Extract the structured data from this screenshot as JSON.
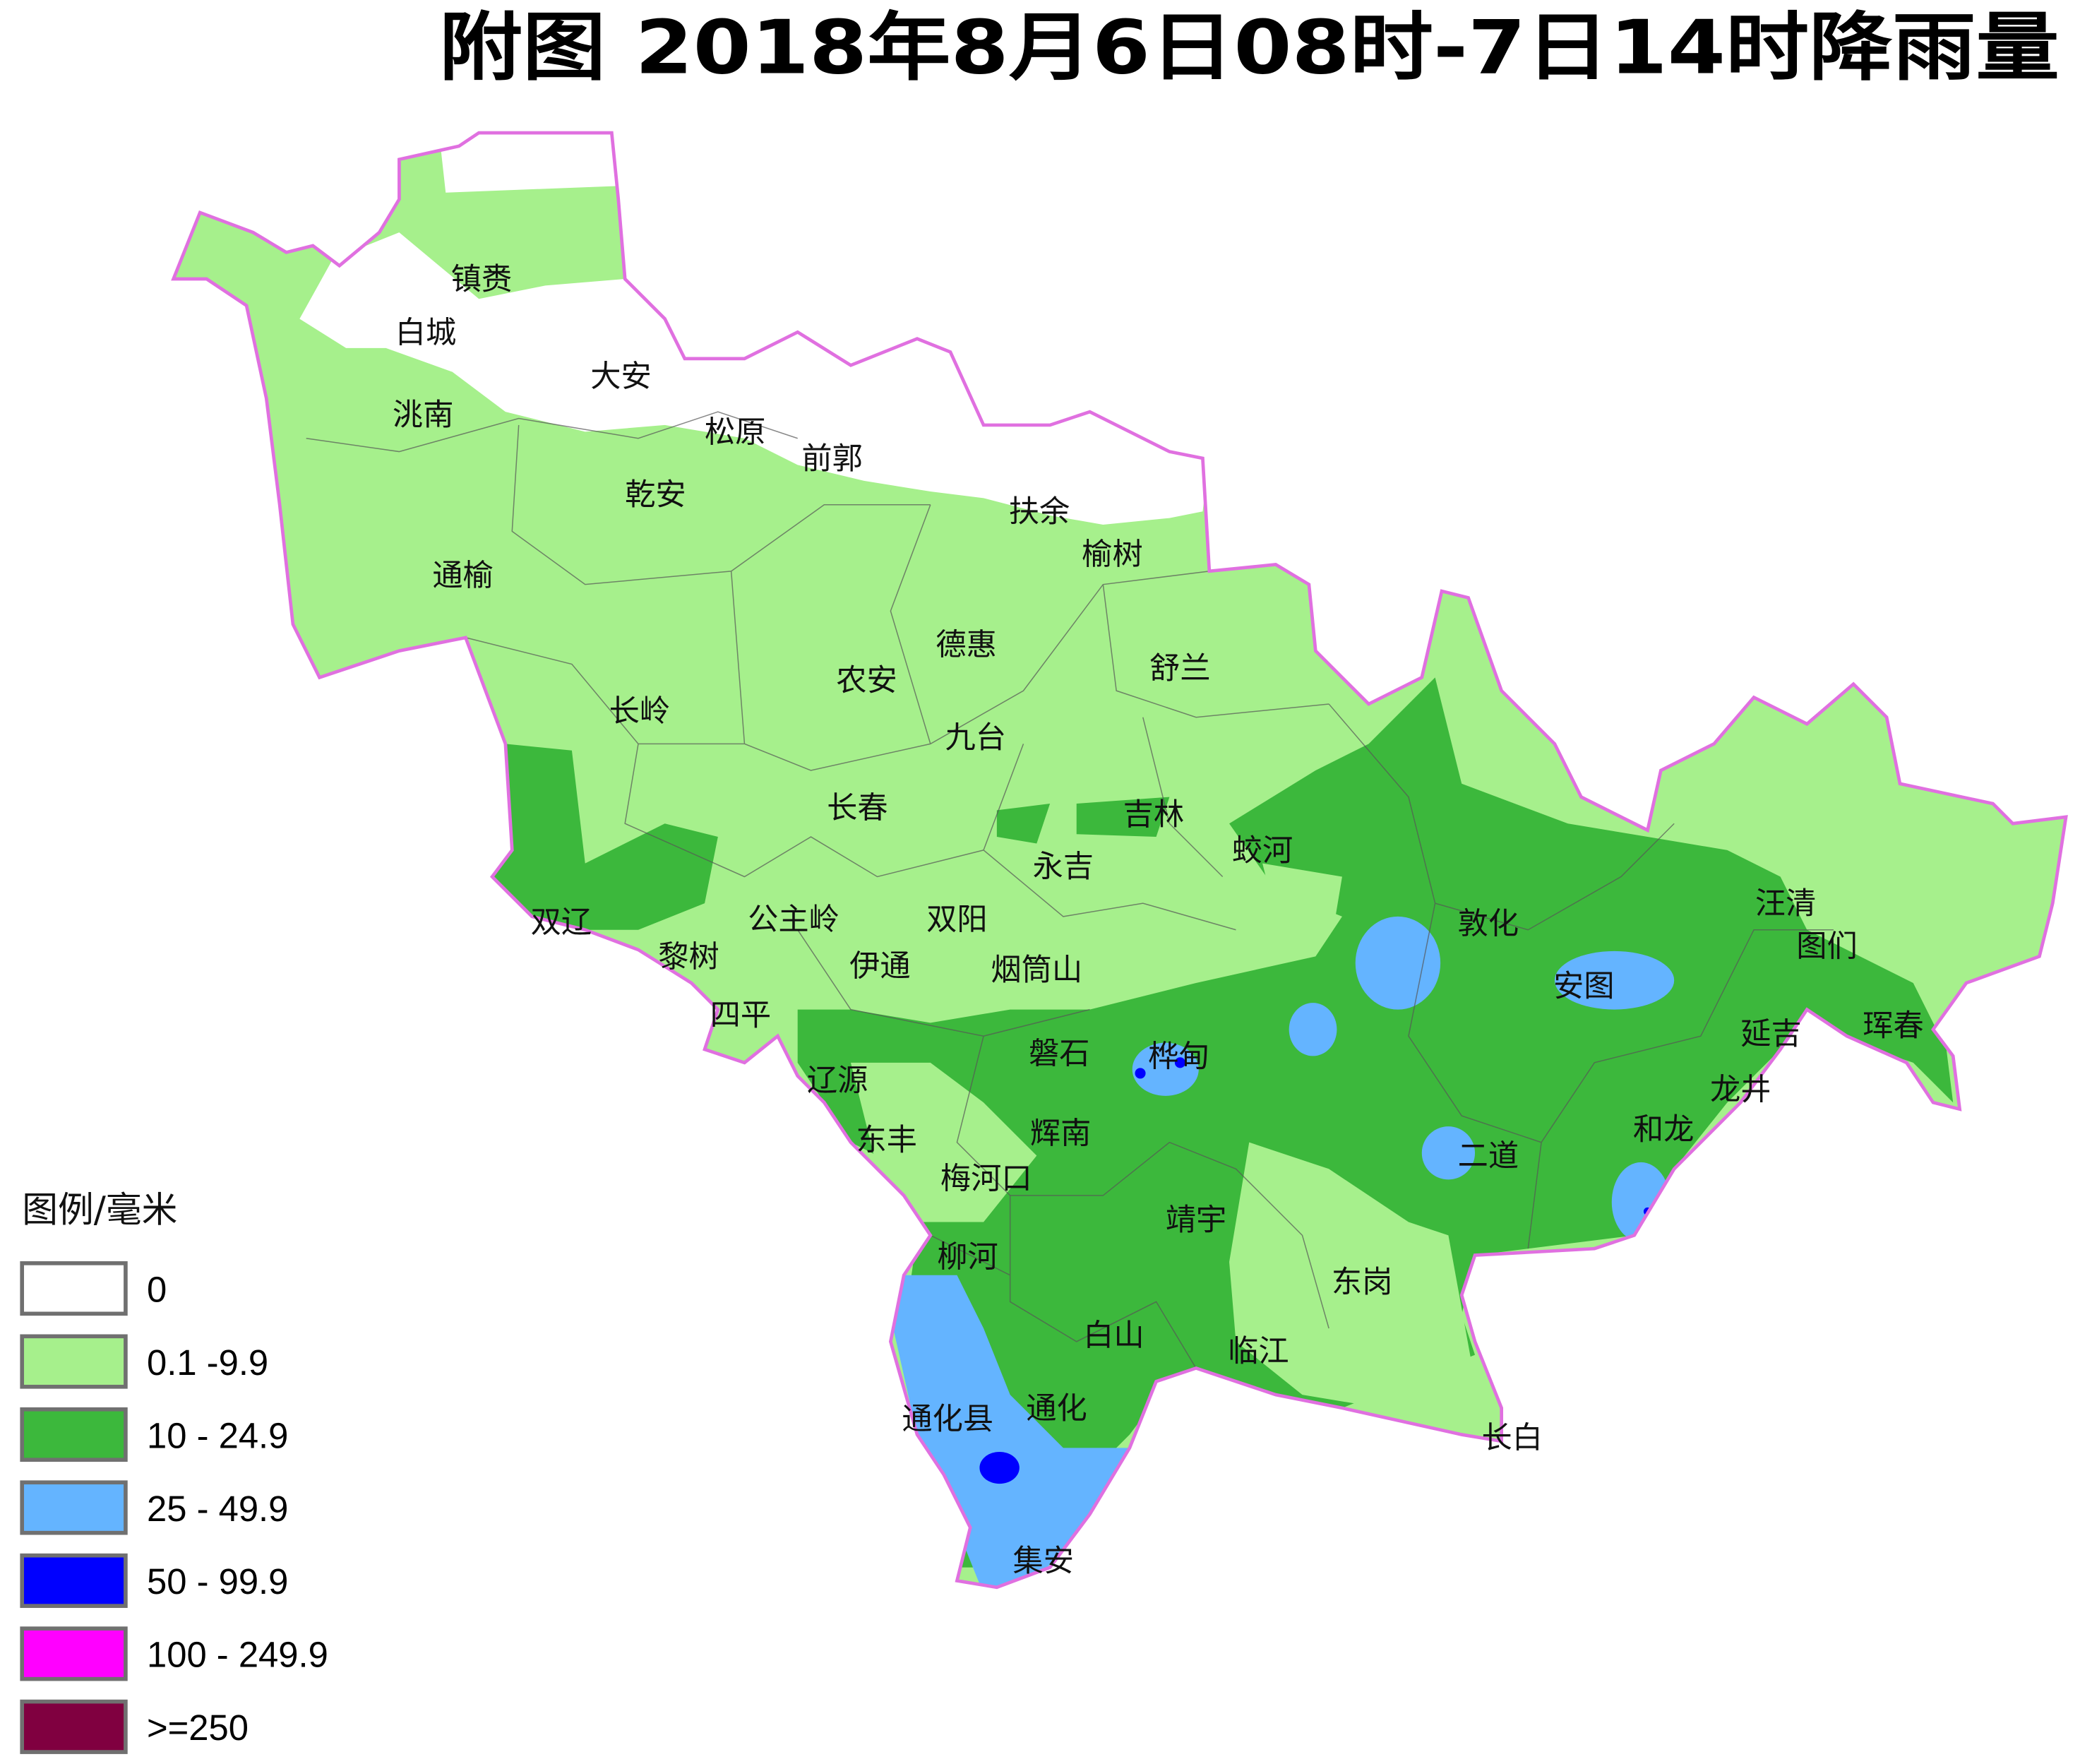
{
  "title": "附图  2018年8月6日08时-7日14时降雨量",
  "colors": {
    "province_border": "#e070e0",
    "county_border": "#555555"
  },
  "legend": {
    "title": "图例/毫米",
    "items": [
      {
        "label": "0",
        "color": "#ffffff"
      },
      {
        "label": "0.1 -9.9",
        "color": "#a6f08c"
      },
      {
        "label": "10 - 24.9",
        "color": "#3cb83c"
      },
      {
        "label": "25 - 49.9",
        "color": "#64b4ff"
      },
      {
        "label": "50 - 99.9",
        "color": "#0000ff"
      },
      {
        "label": "100 - 249.9",
        "color": "#ff00ff"
      },
      {
        "label": ">=250",
        "color": "#800040"
      }
    ]
  },
  "cities": [
    "镇赉",
    "白城",
    "大安",
    "洮南",
    "松原",
    "前郭",
    "乾安",
    "扶余",
    "榆树",
    "通榆",
    "德惠",
    "舒兰",
    "农安",
    "长岭",
    "九台",
    "长春",
    "吉林",
    "蛟河",
    "永吉",
    "双辽",
    "公主岭",
    "双阳",
    "敦化",
    "汪清",
    "图们",
    "黎树",
    "伊通",
    "烟筒山",
    "安图",
    "四平",
    "珲春",
    "延吉",
    "磐石",
    "桦甸",
    "辽源",
    "龙井",
    "和龙",
    "辉南",
    "东丰",
    "二道",
    "梅河口",
    "靖宇",
    "柳河",
    "东岗",
    "白山",
    "临江",
    "通化县",
    "通化",
    "长白",
    "集安"
  ]
}
